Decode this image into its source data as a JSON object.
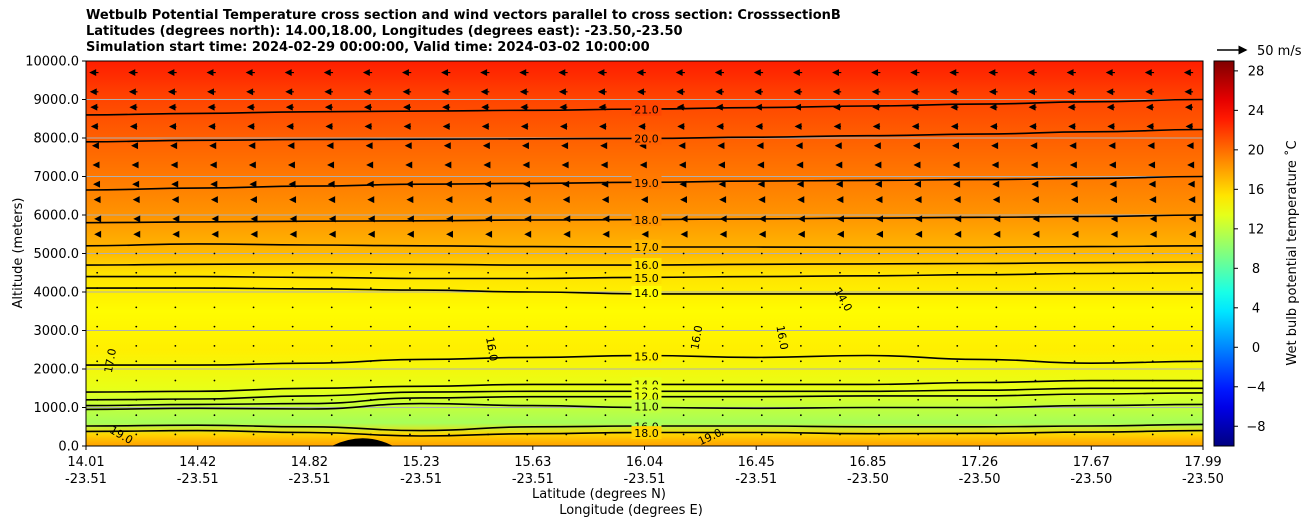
{
  "chart_data": {
    "type": "heatmap",
    "title_lines": [
      "Wetbulb Potential Temperature cross section and wind vectors parallel to cross section: CrosssectionB",
      "Latitudes (degrees north): 14.00,18.00, Longitudes (degrees east): -23.50,-23.50",
      "Simulation start time: 2024-02-29 00:00:00, Valid time: 2024-03-02 10:00:00"
    ],
    "ylabel": "Altitude (meters)",
    "xlabel_lat": "Latitude (degrees N)",
    "xlabel_lon": "Longitude (degrees E)",
    "ylim": [
      0,
      10000
    ],
    "xlim": [
      0,
      10
    ],
    "y_ticks": [
      {
        "value": 0,
        "label": "0.0"
      },
      {
        "value": 1000,
        "label": "1000.0"
      },
      {
        "value": 2000,
        "label": "2000.0"
      },
      {
        "value": 3000,
        "label": "3000.0"
      },
      {
        "value": 4000,
        "label": "4000.0"
      },
      {
        "value": 5000,
        "label": "5000.0"
      },
      {
        "value": 6000,
        "label": "6000.0"
      },
      {
        "value": 7000,
        "label": "7000.0"
      },
      {
        "value": 8000,
        "label": "8000.0"
      },
      {
        "value": 9000,
        "label": "9000.0"
      },
      {
        "value": 10000,
        "label": "10000.0"
      }
    ],
    "x_ticks": [
      {
        "lat": "14.01",
        "lon": "-23.51"
      },
      {
        "lat": "14.42",
        "lon": "-23.51"
      },
      {
        "lat": "14.82",
        "lon": "-23.51"
      },
      {
        "lat": "15.23",
        "lon": "-23.51"
      },
      {
        "lat": "15.63",
        "lon": "-23.51"
      },
      {
        "lat": "16.04",
        "lon": "-23.51"
      },
      {
        "lat": "16.45",
        "lon": "-23.51"
      },
      {
        "lat": "16.85",
        "lon": "-23.50"
      },
      {
        "lat": "17.26",
        "lon": "-23.50"
      },
      {
        "lat": "17.67",
        "lon": "-23.50"
      },
      {
        "lat": "17.99",
        "lon": "-23.50"
      }
    ],
    "colorbar": {
      "label": "Wet bulb potential temperature ˚C",
      "range": [
        -10,
        29
      ],
      "ticks": [
        {
          "value": -8,
          "label": "−8"
        },
        {
          "value": -4,
          "label": "−4"
        },
        {
          "value": 0,
          "label": "0"
        },
        {
          "value": 4,
          "label": "4"
        },
        {
          "value": 8,
          "label": "8"
        },
        {
          "value": 12,
          "label": "12"
        },
        {
          "value": 16,
          "label": "16"
        },
        {
          "value": 20,
          "label": "20"
        },
        {
          "value": 24,
          "label": "24"
        },
        {
          "value": 28,
          "label": "28"
        }
      ]
    },
    "wind_key": "50 m/s",
    "temperature_profile": [
      {
        "alt": 0,
        "t": 18
      },
      {
        "alt": 300,
        "t": 16
      },
      {
        "alt": 600,
        "t": 11
      },
      {
        "alt": 1000,
        "t": 12
      },
      {
        "alt": 1500,
        "t": 13.5
      },
      {
        "alt": 2500,
        "t": 15
      },
      {
        "alt": 3500,
        "t": 14.5
      },
      {
        "alt": 4500,
        "t": 15.5
      },
      {
        "alt": 5000,
        "t": 17
      },
      {
        "alt": 6000,
        "t": 18.5
      },
      {
        "alt": 7000,
        "t": 19.5
      },
      {
        "alt": 8000,
        "t": 20.5
      },
      {
        "alt": 9000,
        "t": 21.5
      },
      {
        "alt": 10000,
        "t": 23
      }
    ],
    "contours": [
      {
        "label": "21.0",
        "alt": [
          8600,
          8640,
          8680,
          8700,
          8720,
          8750,
          8790,
          8830,
          8880,
          8940,
          9000
        ]
      },
      {
        "label": "20.0",
        "alt": [
          7900,
          7940,
          7960,
          7970,
          7980,
          7990,
          8020,
          8060,
          8100,
          8160,
          8220
        ]
      },
      {
        "label": "19.0",
        "alt": [
          6650,
          6700,
          6750,
          6800,
          6820,
          6850,
          6880,
          6900,
          6920,
          6950,
          7000
        ]
      },
      {
        "label": "18.0",
        "alt": [
          5800,
          5820,
          5840,
          5850,
          5870,
          5880,
          5900,
          5920,
          5940,
          5960,
          6000
        ]
      },
      {
        "label": "17.0",
        "alt": [
          5200,
          5250,
          5220,
          5200,
          5180,
          5170,
          5170,
          5160,
          5160,
          5180,
          5200
        ]
      },
      {
        "label": "16.0",
        "alt": [
          4700,
          4720,
          4730,
          4720,
          4700,
          4700,
          4720,
          4730,
          4740,
          4760,
          4780
        ]
      },
      {
        "label": "15.0",
        "alt": [
          4400,
          4400,
          4380,
          4350,
          4350,
          4380,
          4400,
          4420,
          4450,
          4480,
          4500
        ]
      },
      {
        "label": "14.0",
        "alt": [
          4100,
          4100,
          4080,
          4050,
          4000,
          3950,
          3950,
          3950,
          3950,
          3950,
          3950
        ]
      },
      {
        "label": "15.0",
        "alt": [
          2100,
          2100,
          2150,
          2250,
          2300,
          2350,
          2300,
          2350,
          2250,
          2150,
          2200
        ]
      },
      {
        "label": "14.0",
        "alt": [
          1400,
          1420,
          1500,
          1550,
          1600,
          1600,
          1600,
          1600,
          1650,
          1700,
          1700
        ]
      },
      {
        "label": "13.0",
        "alt": [
          1200,
          1220,
          1300,
          1400,
          1420,
          1420,
          1420,
          1420,
          1450,
          1500,
          1500
        ]
      },
      {
        "label": "12.0",
        "alt": [
          1050,
          1080,
          1100,
          1250,
          1280,
          1280,
          1280,
          1300,
          1300,
          1350,
          1380
        ]
      },
      {
        "label": "11.0",
        "alt": [
          950,
          980,
          960,
          1100,
          1050,
          1000,
          980,
          1000,
          1000,
          1050,
          1080
        ]
      },
      {
        "label": "16.0",
        "alt": [
          520,
          540,
          500,
          400,
          500,
          520,
          520,
          500,
          500,
          520,
          560
        ]
      },
      {
        "label": "18.0",
        "alt": [
          380,
          400,
          350,
          260,
          320,
          350,
          350,
          320,
          330,
          360,
          400
        ]
      }
    ],
    "local_labels": [
      {
        "label": "17.0",
        "x": 0.25,
        "alt": 2200,
        "rot": -80
      },
      {
        "label": "16.0",
        "x": 3.6,
        "alt": 2500,
        "rot": 80
      },
      {
        "label": "16.0",
        "x": 5.5,
        "alt": 2800,
        "rot": -80
      },
      {
        "label": "16.0",
        "x": 6.2,
        "alt": 2800,
        "rot": 80
      },
      {
        "label": "14.0",
        "x": 6.75,
        "alt": 3750,
        "rot": 60
      },
      {
        "label": "19.0",
        "x": 0.3,
        "alt": 200,
        "rot": 30
      },
      {
        "label": "19.0",
        "x": 5.6,
        "alt": 150,
        "rot": -25
      }
    ],
    "wind_rows": [
      {
        "alt": 9700,
        "u": -12
      },
      {
        "alt": 9200,
        "u": -11
      },
      {
        "alt": 8800,
        "u": -10
      },
      {
        "alt": 8300,
        "u": -9
      },
      {
        "alt": 7800,
        "u": -7
      },
      {
        "alt": 7300,
        "u": -6
      },
      {
        "alt": 6800,
        "u": -5
      },
      {
        "alt": 6400,
        "u": -4
      },
      {
        "alt": 5900,
        "u": -3
      },
      {
        "alt": 5500,
        "u": -3
      },
      {
        "alt": 5000,
        "u": -2
      },
      {
        "alt": 4500,
        "u": -2
      },
      {
        "alt": 4100,
        "u": -1.5
      },
      {
        "alt": 3600,
        "u": -1
      },
      {
        "alt": 3100,
        "u": -0.5
      },
      {
        "alt": 2600,
        "u": -0.5
      },
      {
        "alt": 2200,
        "u": -0.5
      },
      {
        "alt": 1700,
        "u": -0.3
      },
      {
        "alt": 1200,
        "u": -0.3
      },
      {
        "alt": 800,
        "u": -0.3
      },
      {
        "alt": 300,
        "u": -0.3
      }
    ]
  }
}
